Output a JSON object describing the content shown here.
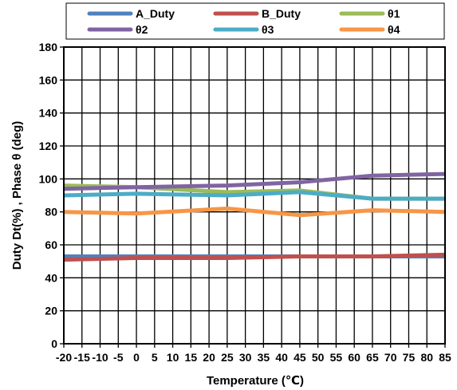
{
  "chart_data": {
    "type": "line",
    "title": "",
    "xlabel": "Temperature (℃)",
    "ylabel": "Duty Dt(%) , Phase θ (deg)",
    "ylim": [
      0,
      180
    ],
    "yticks": [
      0,
      20,
      40,
      60,
      80,
      100,
      120,
      140,
      160,
      180
    ],
    "xlim": [
      -20,
      85
    ],
    "xticks": [
      -20,
      -15,
      -10,
      -5,
      0,
      5,
      10,
      15,
      20,
      25,
      30,
      35,
      40,
      45,
      50,
      55,
      60,
      65,
      70,
      75,
      80,
      85
    ],
    "xtick_labels": [
      "-20",
      "-15",
      "-10",
      "-5",
      "0",
      "5",
      "10",
      "15",
      "20",
      "25",
      "30",
      "35",
      "40",
      "45",
      "50",
      "55",
      "60",
      "65",
      "70",
      "75",
      "80",
      "85"
    ],
    "grid": true,
    "legend_position": "top",
    "series": [
      {
        "name": "A_Duty",
        "color": "#4f81bd",
        "x": [
          -20,
          0,
          25,
          45,
          65,
          85
        ],
        "y": [
          53,
          53,
          53,
          53,
          53,
          53
        ]
      },
      {
        "name": "B_Duty",
        "color": "#c0504d",
        "x": [
          -20,
          0,
          25,
          45,
          65,
          85
        ],
        "y": [
          51,
          52,
          52,
          53,
          53,
          54
        ]
      },
      {
        "name": "θ1",
        "color": "#9bbb59",
        "x": [
          -20,
          0,
          25,
          45,
          65,
          85
        ],
        "y": [
          96,
          95,
          92,
          93,
          88,
          88
        ]
      },
      {
        "name": "θ2",
        "color": "#8064a2",
        "x": [
          -20,
          0,
          25,
          45,
          65,
          85
        ],
        "y": [
          94,
          95,
          96,
          98,
          102,
          103
        ]
      },
      {
        "name": "θ3",
        "color": "#4bacc6",
        "x": [
          -20,
          0,
          25,
          45,
          65,
          85
        ],
        "y": [
          90,
          91,
          90,
          92,
          88,
          88
        ]
      },
      {
        "name": "θ4",
        "color": "#f79646",
        "x": [
          -20,
          0,
          25,
          45,
          65,
          85
        ],
        "y": [
          80,
          79,
          82,
          78,
          81,
          80
        ]
      }
    ]
  }
}
